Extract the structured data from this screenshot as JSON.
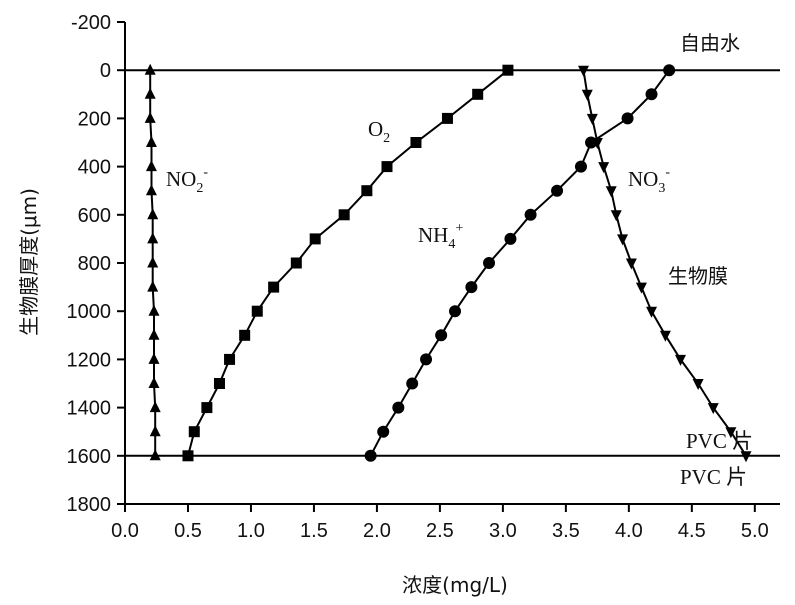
{
  "chart_data": {
    "type": "line",
    "xlabel": "浓度(mg/L)",
    "ylabel": "生物膜厚度(μm)",
    "xlim": [
      0.0,
      5.2
    ],
    "ylim": [
      -200,
      1800
    ],
    "y_inverted": true,
    "x_ticks": [
      "0.0",
      "0.5",
      "1.0",
      "1.5",
      "2.0",
      "2.5",
      "3.0",
      "3.5",
      "4.0",
      "4.5",
      "5.0"
    ],
    "y_ticks": [
      "-200",
      "0",
      "200",
      "400",
      "600",
      "800",
      "1000",
      "1200",
      "1400",
      "1600",
      "1800"
    ],
    "horizontal_lines": [
      0,
      1600
    ],
    "series": [
      {
        "name": "NO2-",
        "marker": "triangle-up",
        "x": [
          0.2,
          0.2,
          0.2,
          0.21,
          0.21,
          0.21,
          0.22,
          0.22,
          0.22,
          0.22,
          0.23,
          0.23,
          0.23,
          0.23,
          0.24,
          0.24,
          0.24
        ],
        "y": [
          0,
          100,
          200,
          300,
          400,
          500,
          600,
          700,
          800,
          900,
          1000,
          1100,
          1200,
          1300,
          1400,
          1500,
          1600
        ]
      },
      {
        "name": "O2",
        "marker": "square",
        "x": [
          3.04,
          2.8,
          2.56,
          2.31,
          2.08,
          1.92,
          1.74,
          1.51,
          1.36,
          1.18,
          1.05,
          0.95,
          0.83,
          0.75,
          0.65,
          0.55,
          0.5
        ],
        "y": [
          0,
          100,
          200,
          300,
          400,
          500,
          600,
          700,
          800,
          900,
          1000,
          1100,
          1200,
          1300,
          1400,
          1500,
          1600
        ]
      },
      {
        "name": "NH4+",
        "marker": "circle",
        "x": [
          4.32,
          4.18,
          3.99,
          3.7,
          3.62,
          3.43,
          3.22,
          3.06,
          2.89,
          2.75,
          2.62,
          2.51,
          2.39,
          2.28,
          2.17,
          2.05,
          1.95
        ],
        "y": [
          0,
          100,
          200,
          300,
          400,
          500,
          600,
          700,
          800,
          900,
          1000,
          1100,
          1200,
          1300,
          1400,
          1500,
          1600
        ]
      },
      {
        "name": "NO3-",
        "marker": "triangle-down",
        "x": [
          3.64,
          3.67,
          3.71,
          3.75,
          3.8,
          3.86,
          3.9,
          3.95,
          4.02,
          4.1,
          4.18,
          4.29,
          4.41,
          4.55,
          4.67,
          4.81,
          4.93
        ],
        "y": [
          0,
          100,
          200,
          300,
          400,
          500,
          600,
          700,
          800,
          900,
          1000,
          1100,
          1200,
          1300,
          1400,
          1500,
          1600
        ]
      }
    ],
    "annotations": {
      "free_water": "自由水",
      "biofilm": "生物膜",
      "pvc_upper": "PVC 片",
      "pvc_lower": "PVC 片"
    },
    "series_labels": {
      "no2": {
        "base": "NO",
        "sub": "2",
        "sup": "-"
      },
      "o2": {
        "base": "O",
        "sub": "2",
        "sup": ""
      },
      "nh4": {
        "base": "NH",
        "sub": "4",
        "sup": "+"
      },
      "no3": {
        "base": "NO",
        "sub": "3",
        "sup": "-"
      }
    }
  }
}
